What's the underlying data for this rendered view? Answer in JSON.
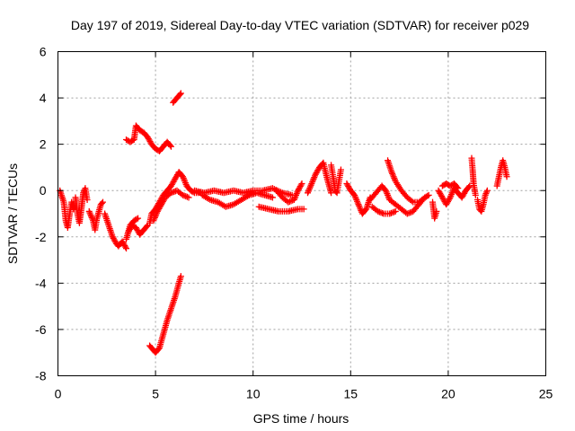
{
  "chart_data": {
    "type": "scatter",
    "title": "Day 197 of 2019, Sidereal Day-to-day VTEC variation (SDTVAR) for receiver p029",
    "xlabel": "GPS time / hours",
    "ylabel": "SDTVAR / TECUs",
    "xlim": [
      0,
      25
    ],
    "ylim": [
      -8,
      6
    ],
    "xticks": [
      0,
      5,
      10,
      15,
      20,
      25
    ],
    "yticks": [
      -8,
      -6,
      -4,
      -2,
      0,
      2,
      4,
      6
    ],
    "grid": true,
    "marker": "+",
    "series": [
      {
        "name": "SDTVAR",
        "color": "#ff0000",
        "arcs": [
          [
            [
              0.1,
              0.0
            ],
            [
              0.3,
              -0.5
            ],
            [
              0.4,
              -1.3
            ],
            [
              0.5,
              -1.6
            ],
            [
              0.6,
              -1.0
            ],
            [
              0.7,
              -0.5
            ],
            [
              0.8,
              -0.8
            ]
          ],
          [
            [
              0.9,
              -0.3
            ],
            [
              1.0,
              -1.0
            ],
            [
              1.1,
              -1.4
            ],
            [
              1.2,
              -0.8
            ],
            [
              1.3,
              -0.1
            ],
            [
              1.4,
              0.1
            ],
            [
              1.5,
              -0.4
            ]
          ],
          [
            [
              1.6,
              -0.9
            ],
            [
              1.8,
              -1.3
            ],
            [
              1.9,
              -1.7
            ],
            [
              2.0,
              -1.2
            ],
            [
              2.2,
              -0.6
            ],
            [
              2.3,
              -0.5
            ]
          ],
          [
            [
              2.4,
              -1.0
            ],
            [
              2.6,
              -1.5
            ],
            [
              2.8,
              -2.0
            ],
            [
              3.0,
              -2.3
            ],
            [
              3.1,
              -2.4
            ],
            [
              3.3,
              -2.2
            ],
            [
              3.5,
              -2.5
            ]
          ],
          [
            [
              3.6,
              -1.8
            ],
            [
              3.8,
              -1.5
            ],
            [
              4.0,
              -1.6
            ],
            [
              4.2,
              -1.9
            ],
            [
              4.4,
              -1.7
            ],
            [
              4.6,
              -1.5
            ]
          ],
          [
            [
              3.5,
              -2.1
            ],
            [
              3.7,
              -1.5
            ],
            [
              3.9,
              -1.3
            ],
            [
              4.1,
              -1.2
            ]
          ],
          [
            [
              4.7,
              -1.4
            ],
            [
              4.8,
              -1.0
            ],
            [
              5.0,
              -0.8
            ],
            [
              5.2,
              -0.5
            ],
            [
              5.4,
              -0.2
            ],
            [
              5.6,
              0.0
            ],
            [
              5.8,
              0.2
            ],
            [
              6.0,
              0.5
            ],
            [
              6.2,
              0.8
            ],
            [
              6.4,
              0.6
            ],
            [
              6.6,
              0.2
            ],
            [
              6.8,
              0.0
            ],
            [
              7.0,
              -0.1
            ],
            [
              7.3,
              -0.1
            ]
          ],
          [
            [
              4.9,
              -1.3
            ],
            [
              5.1,
              -0.9
            ],
            [
              5.3,
              -0.6
            ],
            [
              5.5,
              -0.3
            ],
            [
              5.8,
              -0.1
            ],
            [
              6.1,
              0.0
            ],
            [
              6.4,
              -0.2
            ],
            [
              6.7,
              -0.3
            ]
          ],
          [
            [
              3.5,
              2.2
            ],
            [
              3.7,
              2.1
            ],
            [
              3.9,
              2.2
            ],
            [
              4.0,
              2.8
            ],
            [
              4.2,
              2.6
            ],
            [
              4.4,
              2.5
            ],
            [
              4.6,
              2.3
            ],
            [
              4.8,
              2.0
            ],
            [
              5.0,
              1.8
            ],
            [
              5.2,
              1.7
            ],
            [
              5.4,
              1.9
            ],
            [
              5.6,
              2.1
            ],
            [
              5.8,
              1.9
            ]
          ],
          [
            [
              5.9,
              3.8
            ],
            [
              6.0,
              3.9
            ],
            [
              6.1,
              4.0
            ],
            [
              6.2,
              4.1
            ],
            [
              6.3,
              4.2
            ]
          ],
          [
            [
              4.7,
              -6.7
            ],
            [
              4.9,
              -6.9
            ],
            [
              5.0,
              -7.0
            ],
            [
              5.2,
              -6.8
            ],
            [
              5.4,
              -6.2
            ],
            [
              5.6,
              -5.6
            ],
            [
              5.8,
              -5.1
            ],
            [
              6.0,
              -4.6
            ],
            [
              6.2,
              -4.0
            ],
            [
              6.3,
              -3.7
            ]
          ],
          [
            [
              7.4,
              -0.2
            ],
            [
              7.8,
              -0.4
            ],
            [
              8.2,
              -0.5
            ],
            [
              8.6,
              -0.7
            ],
            [
              9.0,
              -0.6
            ],
            [
              9.4,
              -0.4
            ],
            [
              9.8,
              -0.2
            ],
            [
              10.2,
              -0.1
            ],
            [
              10.6,
              -0.2
            ],
            [
              11.0,
              -0.3
            ]
          ],
          [
            [
              7.0,
              0.0
            ],
            [
              7.5,
              -0.1
            ],
            [
              8.0,
              0.0
            ],
            [
              8.5,
              -0.1
            ],
            [
              9.0,
              0.0
            ],
            [
              9.5,
              -0.1
            ],
            [
              10.0,
              0.0
            ],
            [
              10.5,
              0.0
            ],
            [
              11.0,
              0.1
            ],
            [
              11.5,
              -0.1
            ],
            [
              12.0,
              -0.2
            ]
          ],
          [
            [
              10.3,
              -0.7
            ],
            [
              10.8,
              -0.8
            ],
            [
              11.3,
              -0.9
            ],
            [
              11.8,
              -0.9
            ],
            [
              12.3,
              -0.8
            ],
            [
              12.6,
              -0.8
            ]
          ],
          [
            [
              11.2,
              0.0
            ],
            [
              11.5,
              -0.3
            ],
            [
              11.8,
              -0.5
            ],
            [
              12.1,
              -0.4
            ],
            [
              12.3,
              0.0
            ],
            [
              12.5,
              0.3
            ]
          ],
          [
            [
              12.8,
              -0.1
            ],
            [
              13.0,
              0.3
            ],
            [
              13.2,
              0.7
            ],
            [
              13.4,
              1.0
            ],
            [
              13.6,
              1.2
            ],
            [
              13.8,
              0.5
            ],
            [
              14.0,
              -0.1
            ]
          ],
          [
            [
              14.0,
              1.1
            ],
            [
              14.1,
              0.6
            ],
            [
              14.2,
              0.0
            ],
            [
              14.3,
              -0.1
            ],
            [
              14.4,
              0.4
            ],
            [
              14.5,
              0.9
            ]
          ],
          [
            [
              14.8,
              0.3
            ],
            [
              15.0,
              0.0
            ],
            [
              15.2,
              -0.2
            ],
            [
              15.4,
              -0.6
            ],
            [
              15.6,
              -1.0
            ],
            [
              15.8,
              -0.8
            ],
            [
              16.0,
              -0.3
            ]
          ],
          [
            [
              16.0,
              -0.4
            ],
            [
              16.3,
              -0.1
            ],
            [
              16.6,
              0.2
            ],
            [
              16.8,
              0.0
            ],
            [
              17.0,
              -0.4
            ],
            [
              17.3,
              -0.6
            ],
            [
              17.6,
              -0.8
            ],
            [
              17.9,
              -1.0
            ],
            [
              18.2,
              -0.9
            ],
            [
              18.5,
              -0.6
            ],
            [
              18.8,
              -0.3
            ],
            [
              19.0,
              -0.2
            ]
          ],
          [
            [
              16.1,
              -0.7
            ],
            [
              16.4,
              -0.9
            ],
            [
              16.7,
              -1.0
            ],
            [
              17.0,
              -1.0
            ],
            [
              17.3,
              -0.9
            ]
          ],
          [
            [
              16.9,
              1.3
            ],
            [
              17.1,
              0.8
            ],
            [
              17.3,
              0.4
            ],
            [
              17.6,
              0.0
            ],
            [
              17.9,
              -0.3
            ],
            [
              18.2,
              -0.5
            ],
            [
              18.5,
              -0.5
            ],
            [
              18.8,
              -0.3
            ]
          ],
          [
            [
              19.2,
              -0.5
            ],
            [
              19.3,
              -1.2
            ],
            [
              19.4,
              -0.9
            ]
          ],
          [
            [
              19.5,
              0.0
            ],
            [
              19.7,
              -0.3
            ],
            [
              19.9,
              -0.6
            ],
            [
              20.1,
              -0.3
            ],
            [
              20.3,
              0.1
            ],
            [
              20.5,
              -0.1
            ],
            [
              20.7,
              -0.3
            ],
            [
              20.9,
              0.0
            ],
            [
              21.1,
              0.2
            ]
          ],
          [
            [
              19.7,
              0.2
            ],
            [
              19.9,
              0.3
            ],
            [
              20.1,
              0.2
            ],
            [
              20.3,
              0.3
            ],
            [
              20.5,
              0.1
            ]
          ],
          [
            [
              21.2,
              1.4
            ],
            [
              21.25,
              0.9
            ],
            [
              21.3,
              0.3
            ],
            [
              21.4,
              -0.2
            ]
          ],
          [
            [
              21.5,
              -0.4
            ],
            [
              21.6,
              -0.8
            ],
            [
              21.7,
              -0.9
            ],
            [
              21.8,
              -0.6
            ],
            [
              21.9,
              -0.2
            ],
            [
              22.0,
              0.0
            ]
          ],
          [
            [
              22.5,
              0.2
            ],
            [
              22.6,
              0.6
            ],
            [
              22.7,
              1.0
            ],
            [
              22.8,
              1.3
            ],
            [
              22.9,
              1.0
            ],
            [
              23.0,
              0.6
            ]
          ]
        ]
      }
    ]
  }
}
